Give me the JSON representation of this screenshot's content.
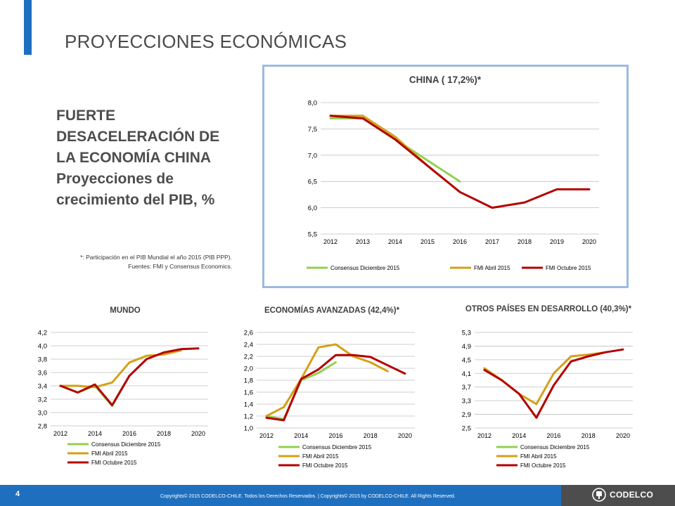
{
  "page": {
    "title": "PROYECCIONES ECONÓMICAS",
    "headline_lines": [
      "FUERTE",
      "DESACELERACIÓN DE",
      "LA ECONOMÍA CHINA",
      "Proyecciones de",
      "crecimiento del PIB, %"
    ],
    "note_lines": [
      "*: Participación en el PIB Mundial el año 2015 (PIB PPP).",
      "Fuentes: FMI y Consensus Economics."
    ],
    "page_number": "4",
    "copyright": "Copyrights© 2015 CODELCO-CHILE. Todos los Derechos Reservados. | Copyrights© 2015 by CODELCO-CHILE. All Rights Reserved.",
    "logo_text": "CODELCO"
  },
  "colors": {
    "accent": "#1f6fbf",
    "consensus": "#92d050",
    "fmi_abril": "#d4a017",
    "fmi_octubre": "#b40000",
    "footer_dark": "#4d4d4d"
  },
  "chart_data": [
    {
      "type": "line",
      "title": "CHINA ( 17,2%)*",
      "x": [
        2012,
        2013,
        2014,
        2015,
        2016,
        2017,
        2018,
        2019,
        2020
      ],
      "ylim": [
        5.5,
        8.0
      ],
      "yticks": [
        "5,5",
        "6,0",
        "6,5",
        "7,0",
        "7,5",
        "8,0"
      ],
      "xticks": [
        "2012",
        "2013",
        "2014",
        "2015",
        "2016",
        "2017",
        "2018",
        "2019",
        "2020"
      ],
      "legend_position": "bottom",
      "series": [
        {
          "name": "Consensus Diciembre 2015",
          "x": [
            2012,
            2013,
            2014,
            2015,
            2016
          ],
          "values": [
            7.7,
            7.7,
            7.3,
            6.9,
            6.5
          ]
        },
        {
          "name": "FMI Abril 2015",
          "x": [
            2012,
            2013,
            2014,
            2015,
            2016
          ],
          "values": [
            7.75,
            7.75,
            7.35,
            6.8,
            6.3
          ]
        },
        {
          "name": "FMI Octubre 2015",
          "x": [
            2012,
            2013,
            2014,
            2015,
            2016,
            2017,
            2018,
            2019,
            2020
          ],
          "values": [
            7.75,
            7.7,
            7.3,
            6.8,
            6.3,
            6.0,
            6.1,
            6.35,
            6.35
          ]
        }
      ]
    },
    {
      "type": "line",
      "title": "MUNDO",
      "x": [
        2012,
        2013,
        2014,
        2015,
        2016,
        2017,
        2018,
        2019,
        2020
      ],
      "ylim": [
        2.8,
        4.2
      ],
      "yticks": [
        "2,8",
        "3,0",
        "3,2",
        "3,4",
        "3,6",
        "3,8",
        "4,0",
        "4,2"
      ],
      "xticks": [
        "2012",
        "2014",
        "2016",
        "2018",
        "2020"
      ],
      "legend_position": "bottom",
      "series": [
        {
          "name": "Consensus Diciembre 2015",
          "x": [
            2012,
            2013,
            2014,
            2015,
            2016
          ],
          "values": [
            3.4,
            3.3,
            3.4,
            3.1,
            3.55
          ]
        },
        {
          "name": "FMI Abril 2015",
          "x": [
            2012,
            2013,
            2014,
            2015,
            2016,
            2017,
            2018,
            2019
          ],
          "values": [
            3.4,
            3.4,
            3.38,
            3.45,
            3.75,
            3.85,
            3.87,
            3.93
          ]
        },
        {
          "name": "FMI Octubre 2015",
          "x": [
            2012,
            2013,
            2014,
            2015,
            2016,
            2017,
            2018,
            2019,
            2020
          ],
          "values": [
            3.4,
            3.3,
            3.42,
            3.11,
            3.55,
            3.8,
            3.9,
            3.95,
            3.96
          ]
        }
      ]
    },
    {
      "type": "line",
      "title": "ECONOMÍAS AVANZADAS (42,4%)*",
      "x": [
        2012,
        2013,
        2014,
        2015,
        2016,
        2017,
        2018,
        2019,
        2020
      ],
      "ylim": [
        1.0,
        2.6
      ],
      "yticks": [
        "1,0",
        "1,2",
        "1,4",
        "1,6",
        "1,8",
        "2,0",
        "2,2",
        "2,4",
        "2,6"
      ],
      "xticks": [
        "2012",
        "2014",
        "2016",
        "2018",
        "2020"
      ],
      "legend_position": "bottom",
      "series": [
        {
          "name": "Consensus Diciembre 2015",
          "x": [
            2012,
            2013,
            2014,
            2015,
            2016
          ],
          "values": [
            1.2,
            1.15,
            1.8,
            1.92,
            2.1
          ]
        },
        {
          "name": "FMI Abril 2015",
          "x": [
            2012,
            2013,
            2014,
            2015,
            2016,
            2017,
            2018,
            2019
          ],
          "values": [
            1.2,
            1.35,
            1.82,
            2.35,
            2.4,
            2.2,
            2.1,
            1.95
          ]
        },
        {
          "name": "FMI Octubre 2015",
          "x": [
            2012,
            2013,
            2014,
            2015,
            2016,
            2017,
            2018,
            2019,
            2020
          ],
          "values": [
            1.17,
            1.13,
            1.82,
            1.98,
            2.22,
            2.22,
            2.19,
            2.05,
            1.91
          ]
        }
      ]
    },
    {
      "type": "line",
      "title": "OTROS PAÍSES EN DESARROLLO (40,3%)*",
      "x": [
        2012,
        2013,
        2014,
        2015,
        2016,
        2017,
        2018,
        2019,
        2020
      ],
      "ylim": [
        2.5,
        5.3
      ],
      "yticks": [
        "2,5",
        "2,9",
        "3,3",
        "3,7",
        "4,1",
        "4,5",
        "4,9",
        "5,3"
      ],
      "xticks": [
        "2012",
        "2014",
        "2016",
        "2018",
        "2020"
      ],
      "legend_position": "bottom",
      "series": [
        {
          "name": "Consensus Diciembre 2015",
          "x": [
            2012,
            2013,
            2014,
            2015,
            2016
          ],
          "values": [
            4.2,
            3.9,
            3.5,
            2.8,
            3.75
          ]
        },
        {
          "name": "FMI Abril 2015",
          "x": [
            2012,
            2013,
            2014,
            2015,
            2016,
            2017,
            2018,
            2019
          ],
          "values": [
            4.25,
            3.9,
            3.5,
            3.2,
            4.1,
            4.6,
            4.65,
            4.72
          ]
        },
        {
          "name": "FMI Octubre 2015",
          "x": [
            2012,
            2013,
            2014,
            2015,
            2016,
            2017,
            2018,
            2019,
            2020
          ],
          "values": [
            4.2,
            3.9,
            3.5,
            2.8,
            3.75,
            4.45,
            4.6,
            4.72,
            4.8
          ]
        }
      ]
    }
  ]
}
